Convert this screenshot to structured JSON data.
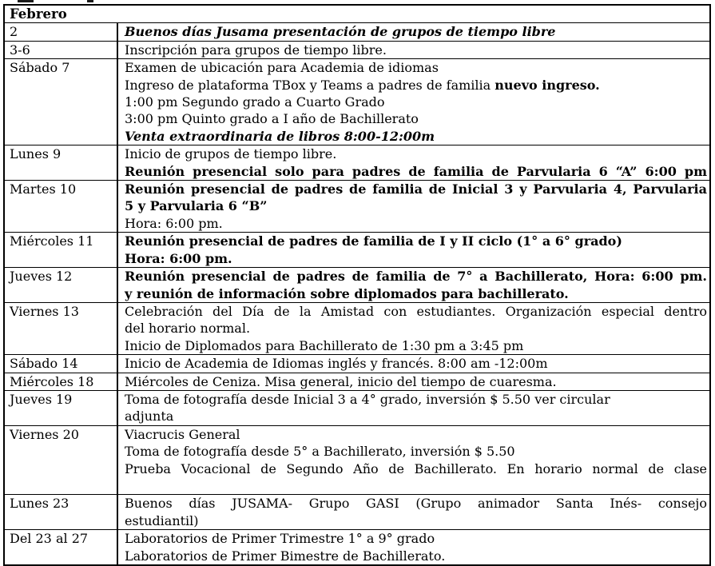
{
  "document": {
    "header": "Febrero",
    "rows": [
      {
        "date": "2",
        "lines": [
          {
            "stretch": false,
            "segments": [
              {
                "text": "Buenos días Jusama  presentación de grupos de tiempo libre",
                "style": "bolditalic"
              }
            ]
          }
        ]
      },
      {
        "date": "3-6",
        "lines": [
          {
            "stretch": false,
            "segments": [
              {
                "text": "Inscripción para grupos de tiempo libre.",
                "style": "normal"
              }
            ]
          }
        ]
      },
      {
        "date": "Sábado 7",
        "lines": [
          {
            "stretch": false,
            "segments": [
              {
                "text": "Examen de ubicación para Academia de idiomas",
                "style": "normal"
              }
            ]
          },
          {
            "stretch": false,
            "segments": [
              {
                "text": "Ingreso de plataforma TBox y Teams a padres de familia ",
                "style": "normal"
              },
              {
                "text": "nuevo ingreso.",
                "style": "bold"
              }
            ]
          },
          {
            "stretch": false,
            "segments": [
              {
                "text": "1:00 pm Segundo grado a Cuarto Grado",
                "style": "normal"
              }
            ]
          },
          {
            "stretch": false,
            "segments": [
              {
                "text": "3:00 pm Quinto grado a I año de Bachillerato",
                "style": "normal"
              }
            ]
          },
          {
            "stretch": false,
            "segments": [
              {
                "text": "Venta extraordinaria de libros 8:00-12:00m",
                "style": "bolditalic"
              }
            ]
          }
        ]
      },
      {
        "date": "Lunes 9",
        "lines": [
          {
            "stretch": false,
            "segments": [
              {
                "text": "Inicio de grupos de tiempo libre.",
                "style": "normal"
              }
            ]
          },
          {
            "stretch": true,
            "segments": [
              {
                "text": "Reunión presencial solo para padres de familia de Parvularia 6 “A” 6:00 pm",
                "style": "bold"
              }
            ]
          }
        ]
      },
      {
        "date": "Martes 10",
        "lines": [
          {
            "stretch": true,
            "segments": [
              {
                "text": "Reunión presencial de padres de familia de Inicial 3 y Parvularia 4, Parvularia",
                "style": "bold"
              }
            ]
          },
          {
            "stretch": false,
            "segments": [
              {
                "text": "5 y Parvularia 6 “B”",
                "style": "bold"
              }
            ]
          },
          {
            "stretch": false,
            "segments": [
              {
                "text": "Hora:  6:00 pm.",
                "style": "normal"
              }
            ]
          }
        ]
      },
      {
        "date": "Miércoles 11",
        "lines": [
          {
            "stretch": false,
            "segments": [
              {
                "text": "Reunión presencial de padres de familia de I y II ciclo (1° a 6° grado)",
                "style": "bold"
              }
            ]
          },
          {
            "stretch": false,
            "segments": [
              {
                "text": "Hora:  6:00 pm.",
                "style": "bold"
              }
            ]
          }
        ]
      },
      {
        "date": "Jueves 12",
        "lines": [
          {
            "stretch": true,
            "segments": [
              {
                "text": "Reunión presencial de padres de familia de 7° a Bachillerato, Hora: 6:00 pm.",
                "style": "bold"
              }
            ]
          },
          {
            "stretch": false,
            "segments": [
              {
                "text": "y reunión de información sobre diplomados para bachillerato.",
                "style": "bold"
              }
            ]
          }
        ]
      },
      {
        "date": "Viernes 13",
        "lines": [
          {
            "stretch": true,
            "segments": [
              {
                "text": "Celebración del Día de la Amistad con estudiantes. Organización especial dentro",
                "style": "normal"
              }
            ]
          },
          {
            "stretch": false,
            "segments": [
              {
                "text": "del horario normal.",
                "style": "normal"
              }
            ]
          },
          {
            "stretch": false,
            "segments": [
              {
                "text": "Inicio de Diplomados para Bachillerato de 1:30 pm a 3:45 pm",
                "style": "normal"
              }
            ]
          }
        ]
      },
      {
        "date": "Sábado 14",
        "lines": [
          {
            "stretch": false,
            "segments": [
              {
                "text": "Inicio de Academia de Idiomas inglés y francés. 8:00 am -12:00m",
                "style": "normal"
              }
            ]
          }
        ]
      },
      {
        "date": "Miércoles 18",
        "lines": [
          {
            "stretch": false,
            "segments": [
              {
                "text": "Miércoles de Ceniza. Misa general, inicio del tiempo de cuaresma.",
                "style": "normal"
              }
            ]
          }
        ]
      },
      {
        "date": "Jueves 19",
        "lines": [
          {
            "stretch": false,
            "segments": [
              {
                "text": "Toma de fotografía desde Inicial 3 a 4° grado, inversión $ 5.50 ver circular",
                "style": "normal"
              }
            ]
          },
          {
            "stretch": false,
            "segments": [
              {
                "text": "adjunta",
                "style": "normal"
              }
            ]
          }
        ]
      },
      {
        "date": "Viernes 20",
        "lines": [
          {
            "stretch": false,
            "segments": [
              {
                "text": "Viacrucis General",
                "style": "normal"
              }
            ]
          },
          {
            "stretch": false,
            "segments": [
              {
                "text": "Toma de fotografía desde 5° a Bachillerato, inversión $ 5.50",
                "style": "normal"
              }
            ]
          },
          {
            "stretch": true,
            "segments": [
              {
                "text": "Prueba Vocacional de Segundo Año de Bachillerato. En horario normal de clase",
                "style": "normal"
              }
            ]
          },
          {
            "stretch": false,
            "segments": []
          }
        ]
      },
      {
        "date": "Lunes 23",
        "lines": [
          {
            "stretch": true,
            "segments": [
              {
                "text": "Buenos días JUSAMA- Grupo GASI (Grupo animador Santa Inés- consejo",
                "style": "normal"
              }
            ]
          },
          {
            "stretch": false,
            "segments": [
              {
                "text": "estudiantil)",
                "style": "normal"
              }
            ]
          }
        ]
      },
      {
        "date": "Del 23 al 27",
        "lines": [
          {
            "stretch": false,
            "segments": [
              {
                "text": "Laboratorios de Primer Trimestre 1° a 9° grado",
                "style": "normal"
              }
            ]
          },
          {
            "stretch": false,
            "segments": [
              {
                "text": "Laboratorios de Primer Bimestre de Bachillerato.",
                "style": "normal"
              }
            ]
          }
        ]
      }
    ]
  }
}
